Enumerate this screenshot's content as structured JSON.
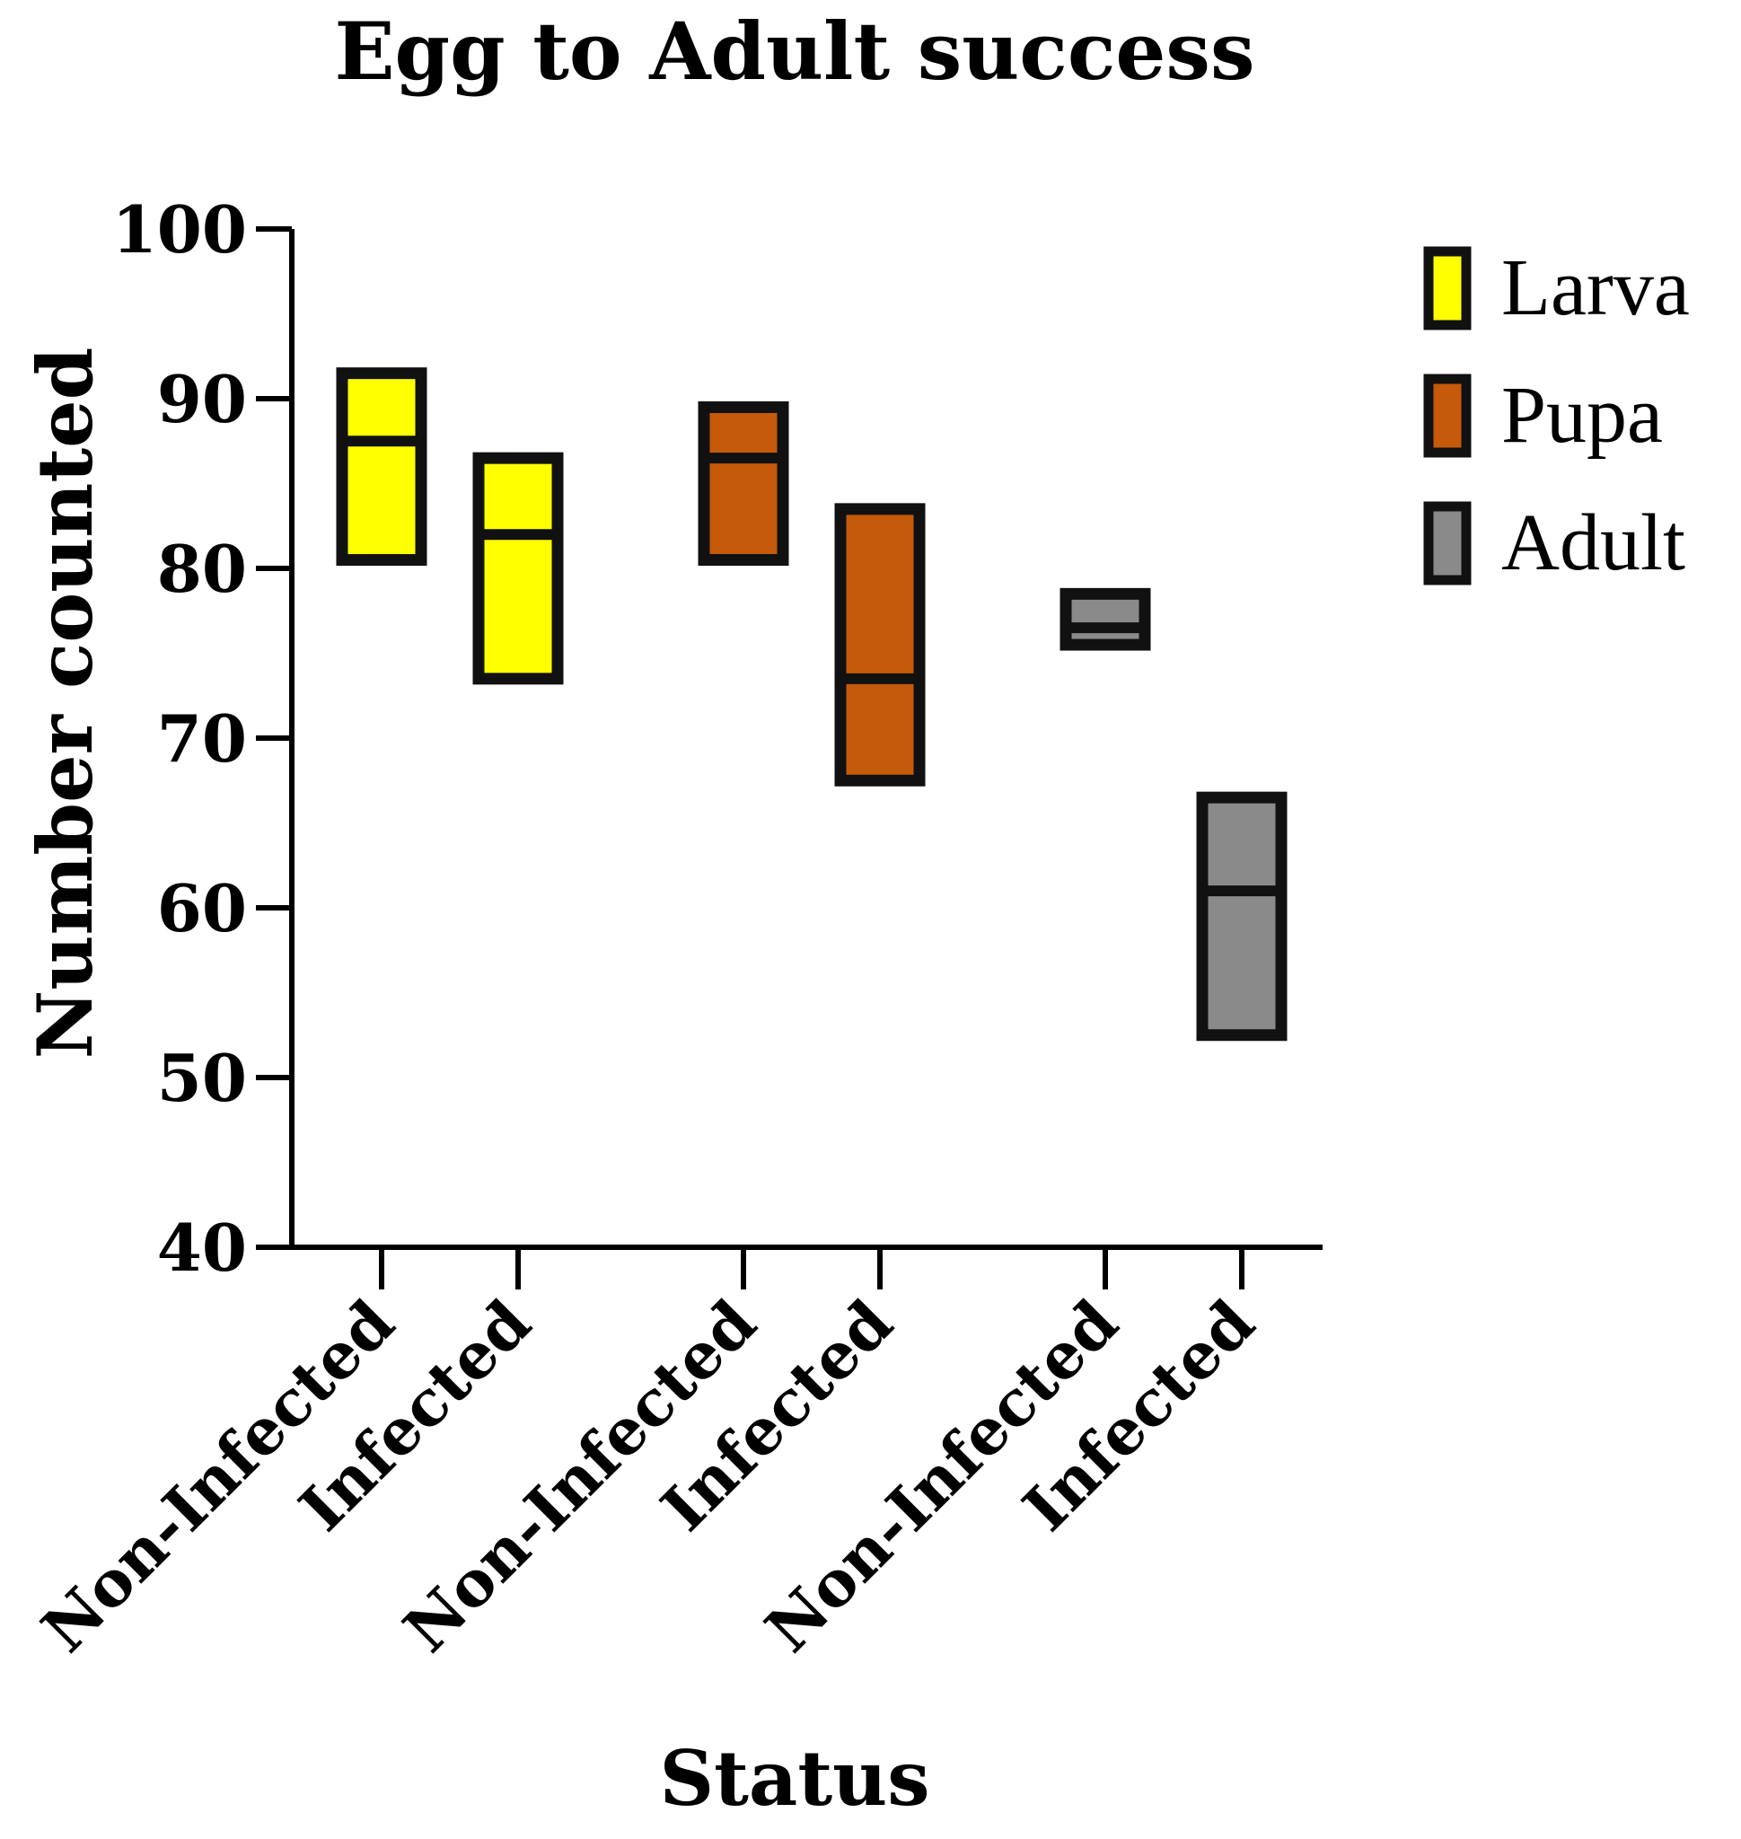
{
  "chart_data": {
    "type": "box",
    "title": "Egg to Adult success",
    "xlabel": "Status",
    "ylabel": "Number counted",
    "ylim": [
      40,
      100
    ],
    "yticks": [
      "40",
      "50",
      "60",
      "70",
      "80",
      "90",
      "100"
    ],
    "categories": [
      "Non-Infected",
      "Infected",
      "Non-Infected",
      "Infected",
      "Non-Infected",
      "Infected"
    ],
    "grid": false,
    "legend_position": "top-right",
    "series": [
      {
        "name": "Larva",
        "color": "#ffff00",
        "boxes": [
          {
            "category_index": 0,
            "min": 80.5,
            "median": 87.5,
            "max": 91.5
          },
          {
            "category_index": 1,
            "min": 73.5,
            "median": 82,
            "max": 86.5
          }
        ]
      },
      {
        "name": "Pupa",
        "color": "#c55a0a",
        "boxes": [
          {
            "category_index": 2,
            "min": 80.5,
            "median": 86.5,
            "max": 89.5
          },
          {
            "category_index": 3,
            "min": 67.5,
            "median": 73.5,
            "max": 83.5
          }
        ]
      },
      {
        "name": "Adult",
        "color": "#8a8a8a",
        "boxes": [
          {
            "category_index": 4,
            "min": 75.5,
            "median": 76.5,
            "max": 78.5
          },
          {
            "category_index": 5,
            "min": 52.5,
            "median": 61,
            "max": 66.5
          }
        ]
      }
    ]
  }
}
